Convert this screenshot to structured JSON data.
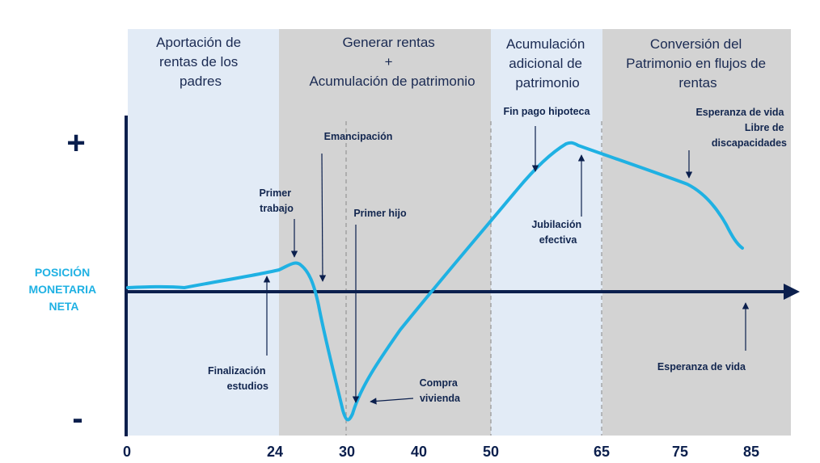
{
  "colors": {
    "phase_light": "#e2ebf6",
    "phase_dark": "#d3d3d3",
    "axis": "#0b1f4d",
    "curve": "#1fb1e3",
    "text": "#12264f"
  },
  "y_axis": {
    "label_lines": [
      "POSICIÓN",
      "MONETARIA",
      "NETA"
    ],
    "plus": "+",
    "minus": "-"
  },
  "x_axis": {
    "ticks": [
      "0",
      "24",
      "30",
      "40",
      "50",
      "65",
      "75",
      "85"
    ]
  },
  "phases": [
    {
      "title_lines": [
        "Aportación de",
        "rentas de los",
        "padres"
      ],
      "shade": "light"
    },
    {
      "title_lines": [
        "Generar rentas",
        "+",
        "Acumulación de patrimonio"
      ],
      "shade": "dark"
    },
    {
      "title_lines": [
        "Acumulación",
        "adicional de",
        "patrimonio"
      ],
      "shade": "light"
    },
    {
      "title_lines": [
        "Conversión del",
        "Patrimonio en flujos de",
        "rentas"
      ],
      "shade": "dark"
    }
  ],
  "annotations": [
    {
      "id": "primer-trabajo",
      "lines": [
        "Primer",
        "trabajo"
      ]
    },
    {
      "id": "emancipacion",
      "lines": [
        "Emancipación"
      ]
    },
    {
      "id": "primer-hijo",
      "lines": [
        "Primer hijo"
      ]
    },
    {
      "id": "finalizacion-estudios",
      "lines": [
        "Finalización",
        "estudios"
      ]
    },
    {
      "id": "compra-vivienda",
      "lines": [
        "Compra",
        "vivienda"
      ]
    },
    {
      "id": "fin-pago-hipoteca",
      "lines": [
        "Fin pago hipoteca"
      ]
    },
    {
      "id": "jubilacion-efectiva",
      "lines": [
        "Jubilación",
        "efectiva"
      ]
    },
    {
      "id": "esperanza-vida-libre",
      "lines": [
        "Esperanza de vida",
        "Libre de",
        "discapacidades"
      ]
    },
    {
      "id": "esperanza-vida",
      "lines": [
        "Esperanza de vida"
      ]
    }
  ]
}
